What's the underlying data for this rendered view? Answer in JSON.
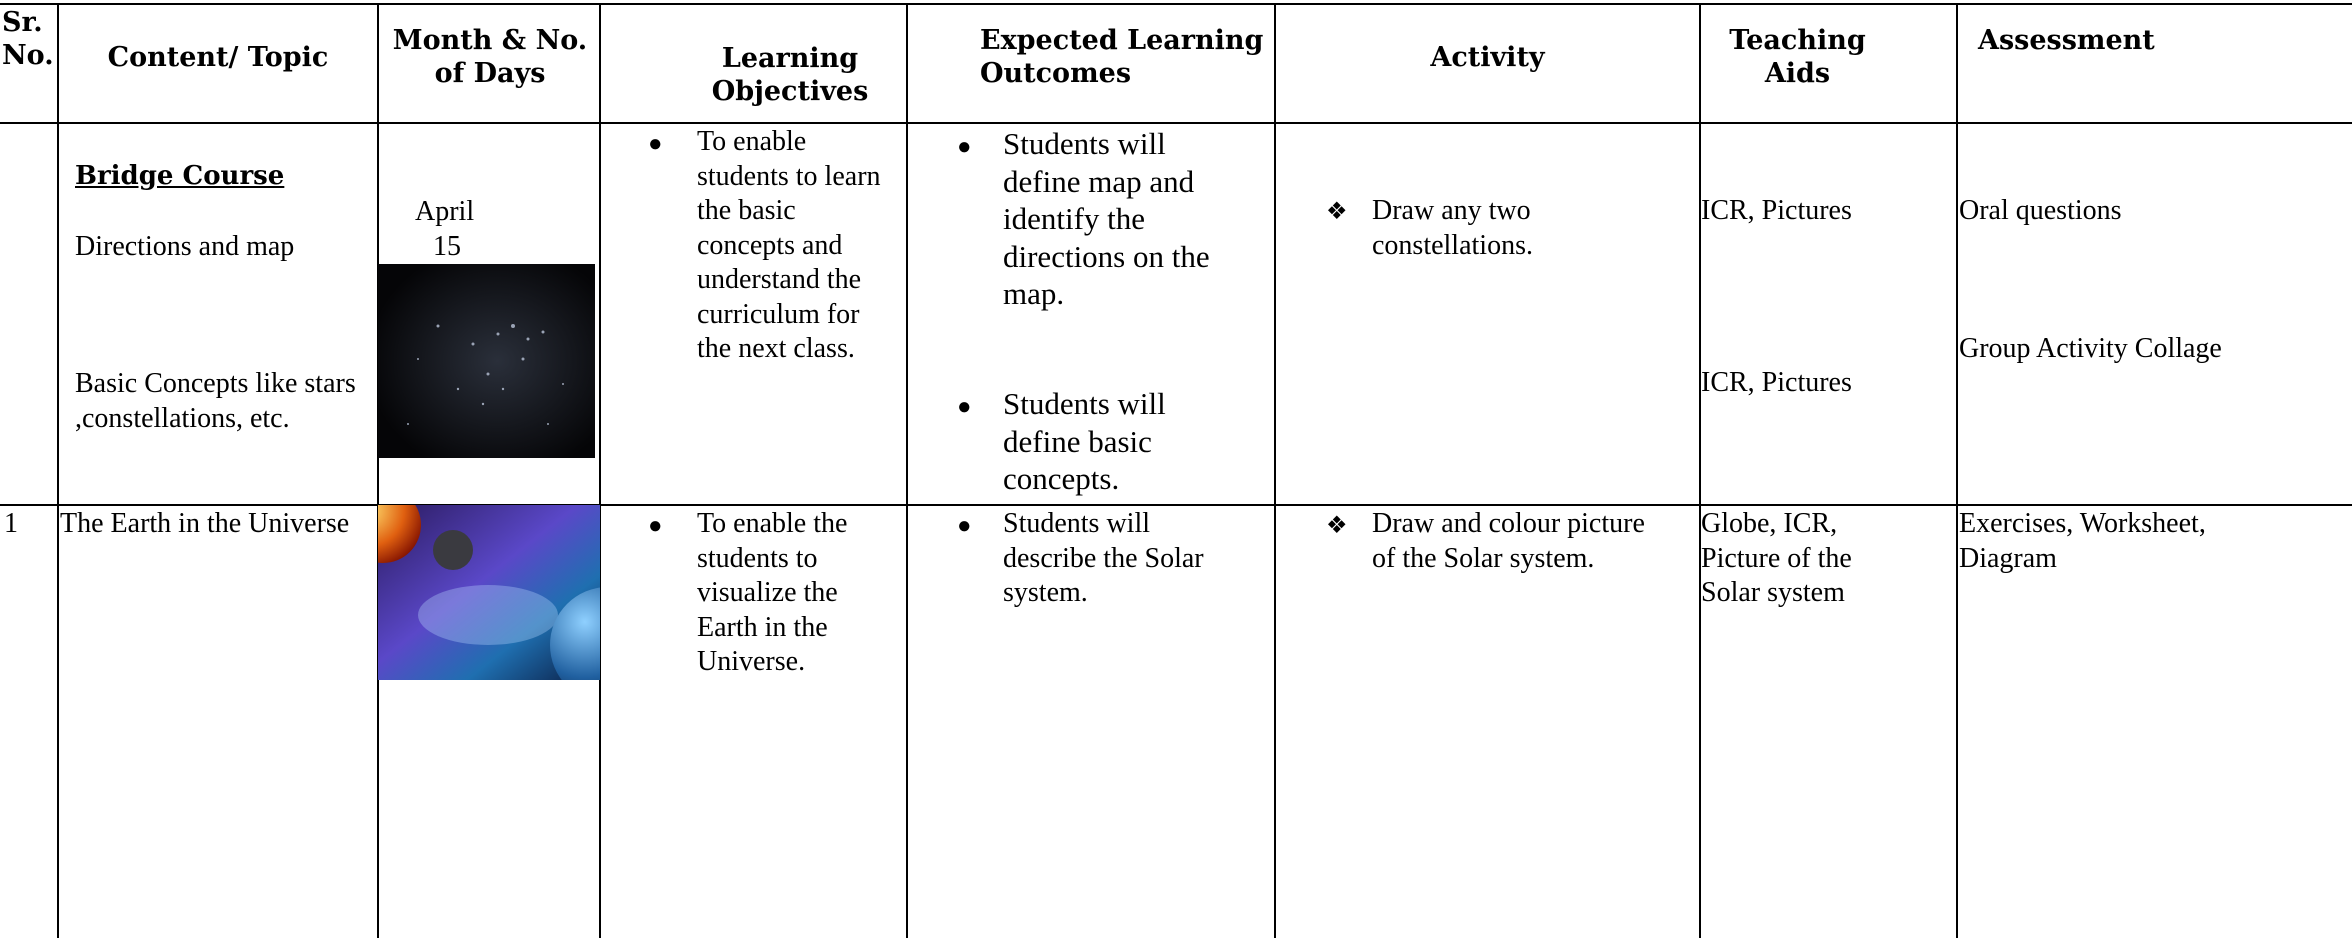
{
  "table": {
    "header": [
      "Sr. No.",
      "Content/ Topic",
      "Month & No. of Days",
      "Learning Objectives",
      "Expected Learning Outcomes",
      "Activity",
      "Teaching Aids",
      "Assessment"
    ],
    "rows": [
      {
        "content_heading": "Bridge Course",
        "content": [
          "Directions and map",
          "Basic Concepts like stars ,constellations, etc."
        ],
        "month": "April",
        "days": "15",
        "objectives": [
          "To enable students to learn the basic concepts and understand the curriculum for the next class."
        ],
        "outcomes": [
          "Students will define map and identify the directions on the map.",
          "Students will define basic concepts."
        ],
        "activity": [
          "Draw any two constellations."
        ],
        "aids": [
          "ICR, Pictures",
          "ICR, Pictures"
        ],
        "assessment": [
          "Oral questions",
          "Group Activity Collage"
        ]
      },
      {
        "sr": "1",
        "content": [
          "The Earth in the Universe"
        ],
        "objectives": [
          "To enable the students to visualize the Earth in the Universe."
        ],
        "outcomes": [
          "Students will describe the Solar system."
        ],
        "activity": [
          "Draw and colour picture of the Solar system."
        ],
        "aids": [
          "Globe, ICR, Picture of the Solar system"
        ],
        "assessment": [
          "Exercises, Worksheet, Diagram"
        ]
      }
    ]
  }
}
